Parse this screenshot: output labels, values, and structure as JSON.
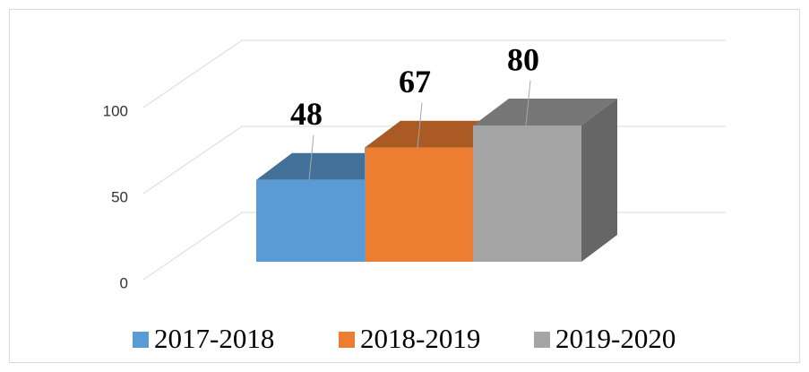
{
  "chart_data": {
    "type": "bar3d",
    "series": [
      {
        "name": "2017-2018",
        "color": "#5b9bd5",
        "values": [
          48
        ]
      },
      {
        "name": "2018-2019",
        "color": "#ed7d31",
        "values": [
          67
        ]
      },
      {
        "name": "2019-2020",
        "color": "#a5a5a5",
        "values": [
          80
        ]
      }
    ],
    "ylim": [
      0,
      100
    ],
    "yticks": [
      0,
      50,
      100
    ],
    "grid": true,
    "legend": "bottom"
  }
}
